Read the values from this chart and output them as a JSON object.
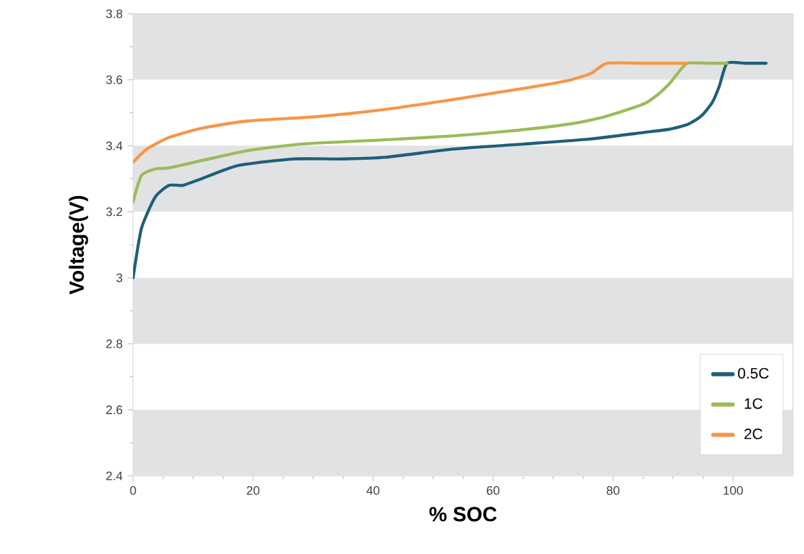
{
  "chart_data": {
    "type": "line",
    "xlabel": "% SOC",
    "ylabel": "Voltage(V)",
    "xlim": [
      0,
      110
    ],
    "xticks": [
      0,
      20,
      40,
      60,
      80,
      100
    ],
    "ylim": [
      2.4,
      3.8
    ],
    "yticks": [
      2.4,
      2.6,
      2.8,
      3,
      3.2,
      3.4,
      3.6,
      3.8
    ],
    "bands": [
      {
        "axis": "y",
        "from": 2.4,
        "to": 2.6,
        "color": "#e1e2e4"
      },
      {
        "axis": "y",
        "from": 2.8,
        "to": 3.0,
        "color": "#e1e2e4"
      },
      {
        "axis": "y",
        "from": 3.2,
        "to": 3.4,
        "color": "#e1e2e4"
      },
      {
        "axis": "y",
        "from": 3.6,
        "to": 3.8,
        "color": "#e1e2e4"
      }
    ],
    "grid": false,
    "legend": "bottom right",
    "marker": "none",
    "line_style": "solid",
    "series": [
      {
        "name": "0.5C",
        "color": "#1f5f7a",
        "x": [
          0,
          1.4,
          3.7,
          6,
          8.3,
          11.4,
          17.5,
          26.7,
          34.4,
          42,
          53.4,
          65,
          76,
          85,
          89.4,
          92.5,
          94.7,
          96.5,
          97.7,
          99,
          102,
          105.5
        ],
        "values": [
          3.0,
          3.15,
          3.245,
          3.28,
          3.28,
          3.3,
          3.34,
          3.36,
          3.36,
          3.365,
          3.39,
          3.405,
          3.42,
          3.44,
          3.45,
          3.465,
          3.49,
          3.53,
          3.58,
          3.65,
          3.65,
          3.65
        ]
      },
      {
        "name": "1C",
        "color": "#9bbb59",
        "x": [
          0,
          1.4,
          3.7,
          6,
          11.4,
          19,
          28,
          42,
          53.4,
          63,
          72.5,
          78,
          82.5,
          85.5,
          87.8,
          89.5,
          90.8,
          92.4,
          96,
          99
        ],
        "values": [
          3.23,
          3.31,
          3.33,
          3.333,
          3.355,
          3.385,
          3.405,
          3.418,
          3.43,
          3.445,
          3.465,
          3.485,
          3.51,
          3.53,
          3.56,
          3.59,
          3.62,
          3.65,
          3.65,
          3.65
        ]
      },
      {
        "name": "2C",
        "color": "#f79646",
        "x": [
          0,
          2.3,
          6,
          11.4,
          19,
          30.5,
          42,
          53.4,
          62,
          68.8,
          73,
          76.4,
          79,
          85,
          92.4
        ],
        "values": [
          3.35,
          3.39,
          3.425,
          3.453,
          3.475,
          3.488,
          3.51,
          3.54,
          3.565,
          3.585,
          3.6,
          3.62,
          3.65,
          3.65,
          3.65
        ]
      }
    ]
  }
}
